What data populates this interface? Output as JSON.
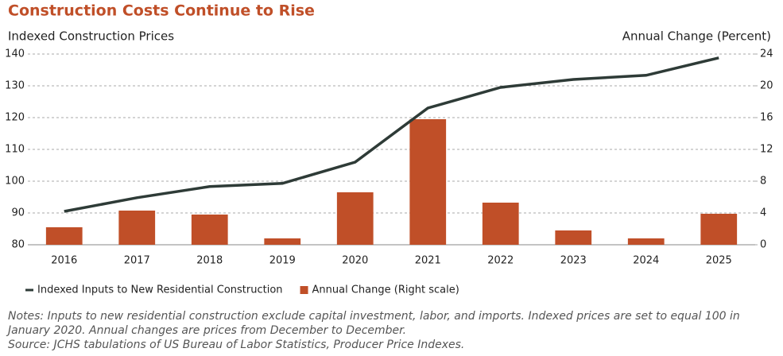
{
  "chart_data": {
    "type": "bar-line",
    "title": "Construction Costs Continue to Rise",
    "y_label": "Indexed Construction Prices",
    "y2_label": "Annual Change (Percent)",
    "categories": [
      "2016",
      "2017",
      "2018",
      "2019",
      "2020",
      "2021",
      "2022",
      "2023",
      "2024",
      "2025"
    ],
    "series": [
      {
        "name": "Indexed Inputs to New Residential Construction",
        "type": "line",
        "color": "#2e3b37",
        "values": [
          90.5,
          94.8,
          98.3,
          99.3,
          106,
          123,
          129.5,
          132,
          133.3,
          138.8
        ]
      },
      {
        "name": "Annual Change (Right scale)",
        "type": "bar",
        "axis": "y2",
        "color": "#c04f28",
        "values": [
          2.2,
          4.3,
          3.8,
          0.8,
          6.6,
          15.8,
          5.3,
          1.8,
          0.8,
          3.9
        ]
      }
    ],
    "ylim": [
      80,
      140
    ],
    "yticks": [
      80,
      90,
      100,
      110,
      120,
      130,
      140
    ],
    "y2lim": [
      0,
      24
    ],
    "y2ticks": [
      0,
      4,
      8,
      12,
      16,
      20,
      24
    ],
    "grid": true,
    "notes": [
      "Notes: Inputs to new residential construction exclude capital investment, labor, and imports. Indexed prices are set to equal 100 in",
      "January 2020. Annual changes are prices from December to December.",
      "Source: JCHS tabulations of US Bureau of Labor Statistics, Producer Price Indexes."
    ]
  }
}
